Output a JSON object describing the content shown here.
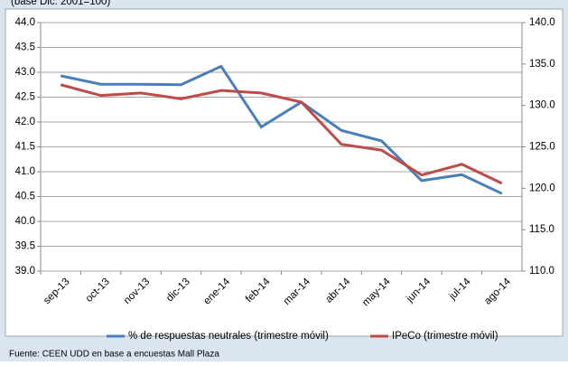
{
  "chart_data": {
    "type": "line",
    "subtitle": "(base Dic. 2001=100)",
    "source": "Fuente: CEEN UDD en base a encuestas Mall Plaza",
    "categories": [
      "sep-13",
      "oct-13",
      "nov-13",
      "dic-13",
      "ene-14",
      "feb-14",
      "mar-14",
      "abr-14",
      "may-14",
      "jun-14",
      "jul-14",
      "ago-14"
    ],
    "series": [
      {
        "name": "% de respuestas neutrales (trimestre móvil)",
        "color": "#4a7ebb",
        "values": [
          42.93,
          42.76,
          42.76,
          42.75,
          43.12,
          41.9,
          42.4,
          41.83,
          41.62,
          40.82,
          40.94,
          40.56
        ]
      },
      {
        "name": "IPeCo (trimestre móvil)",
        "color": "#be4b48",
        "axis": "y2",
        "values": [
          132.5,
          131.2,
          131.5,
          130.8,
          131.8,
          131.5,
          130.4,
          125.3,
          124.6,
          121.6,
          122.9,
          120.6
        ]
      }
    ],
    "ylim": [
      39,
      44
    ],
    "yticks": [
      {
        "value": 39,
        "label": "39.0"
      },
      {
        "value": 39.5,
        "label": "39.5"
      },
      {
        "value": 40,
        "label": "40.0"
      },
      {
        "value": 40.5,
        "label": "40.5"
      },
      {
        "value": 41,
        "label": "41.0"
      },
      {
        "value": 41.5,
        "label": "41.5"
      },
      {
        "value": 42,
        "label": "42.0"
      },
      {
        "value": 42.5,
        "label": "42.5"
      },
      {
        "value": 43,
        "label": "43.0"
      },
      {
        "value": 43.5,
        "label": "43.5"
      },
      {
        "value": 44,
        "label": "44.0"
      }
    ],
    "y2lim": [
      110,
      140
    ],
    "y2ticks": [
      {
        "value": 110,
        "label": "110.0"
      },
      {
        "value": 115,
        "label": "115.0"
      },
      {
        "value": 120,
        "label": "120.0"
      },
      {
        "value": 125,
        "label": "125.0"
      },
      {
        "value": 130,
        "label": "130.0"
      },
      {
        "value": 135,
        "label": "135.0"
      },
      {
        "value": 140,
        "label": "140.0"
      }
    ],
    "grid": true
  }
}
